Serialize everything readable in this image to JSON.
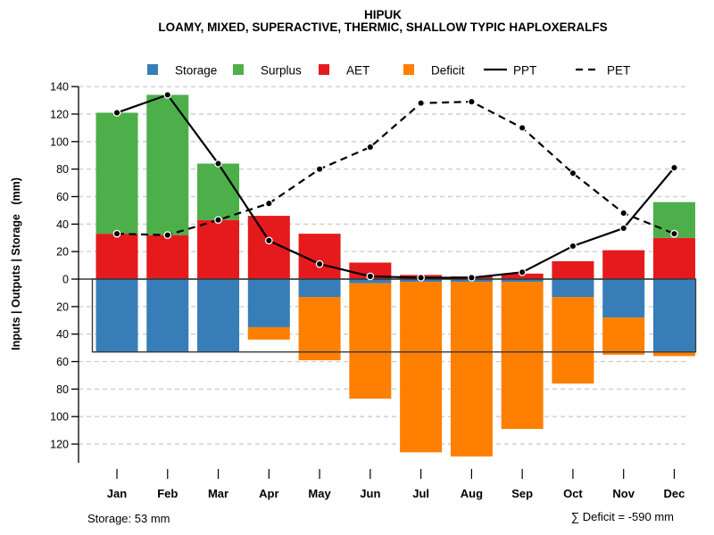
{
  "header": {
    "title": "HIPUK",
    "subtitle": "LOAMY, MIXED, SUPERACTIVE, THERMIC, SHALLOW TYPIC HAPLOXERALFS"
  },
  "legend": {
    "items": [
      {
        "label": "Storage",
        "swatch": "square",
        "color": "#377EB8"
      },
      {
        "label": "Surplus",
        "swatch": "square",
        "color": "#4DAF4A"
      },
      {
        "label": "AET",
        "swatch": "square",
        "color": "#E41A1C"
      },
      {
        "label": "Deficit",
        "swatch": "square",
        "color": "#FF7F00"
      },
      {
        "label": "PPT",
        "swatch": "solid-line",
        "color": "#000000"
      },
      {
        "label": "PET",
        "swatch": "dashed-line",
        "color": "#000000"
      }
    ]
  },
  "footer": {
    "storage_note": "Storage: 53 mm",
    "deficit_note": "∑ Deficit = -590 mm"
  },
  "chart_data": {
    "type": "bar+line",
    "title": "HIPUK",
    "subtitle": "LOAMY, MIXED, SUPERACTIVE, THERMIC, SHALLOW TYPIC HAPLOXERALFS",
    "ylabel": "Inputs | Outputs | Storage   (mm)",
    "unit": "mm",
    "categories": [
      "Jan",
      "Feb",
      "Mar",
      "Apr",
      "May",
      "Jun",
      "Jul",
      "Aug",
      "Sep",
      "Oct",
      "Nov",
      "Dec"
    ],
    "ylim": [
      -120,
      140
    ],
    "ytick_step": 20,
    "ytick_labels_absolute": true,
    "grid": "dashed-horizontal",
    "legend_position": "top",
    "storage_capacity_mm": 53,
    "deficit_total_mm": -590,
    "series": [
      {
        "name": "Storage",
        "type": "bar",
        "axis_direction": "down",
        "color": "#377EB8",
        "values": [
          53,
          53,
          53,
          35,
          13,
          3,
          2,
          2,
          2,
          13,
          28,
          53
        ]
      },
      {
        "name": "Surplus",
        "type": "bar",
        "stacked_on": "AET",
        "color": "#4DAF4A",
        "values": [
          88,
          102,
          41,
          0,
          0,
          0,
          0,
          0,
          0,
          0,
          0,
          26
        ]
      },
      {
        "name": "AET",
        "type": "bar",
        "color": "#E41A1C",
        "values": [
          33,
          32,
          43,
          46,
          33,
          12,
          3,
          2,
          4,
          13,
          21,
          30
        ]
      },
      {
        "name": "Deficit",
        "type": "bar",
        "axis_direction": "down",
        "stacked_on": "Storage",
        "color": "#FF7F00",
        "values": [
          0,
          0,
          0,
          9,
          46,
          84,
          124,
          127,
          107,
          63,
          27,
          3
        ]
      },
      {
        "name": "PPT",
        "type": "line",
        "line_style": "solid",
        "color": "#000000",
        "values": [
          121,
          134,
          84,
          28,
          11,
          2,
          1,
          1,
          5,
          24,
          37,
          81
        ]
      },
      {
        "name": "PET",
        "type": "line",
        "line_style": "dashed",
        "color": "#000000",
        "values": [
          33,
          32,
          43,
          55,
          80,
          96,
          128,
          129,
          110,
          77,
          48,
          33
        ]
      }
    ]
  }
}
